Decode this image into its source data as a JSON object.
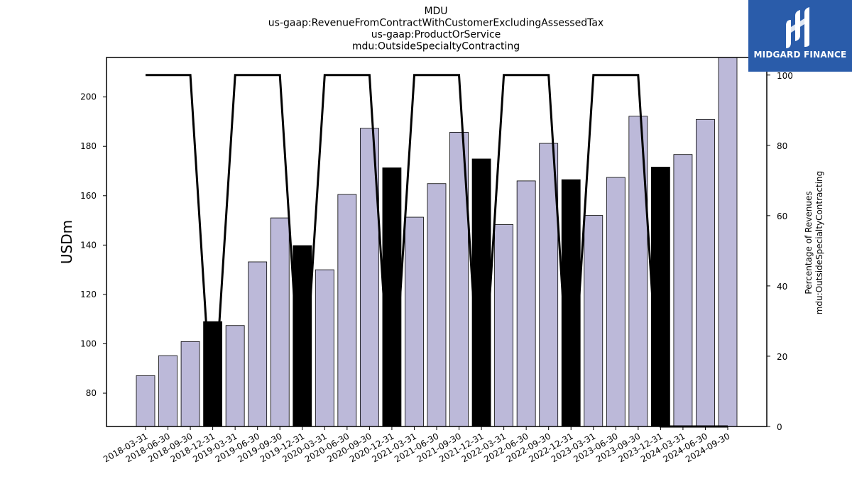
{
  "header": {
    "title_lines": [
      "MDU",
      "us-gaap:RevenueFromContractWithCustomerExcludingAssessedTax",
      "us-gaap:ProductOrService",
      "mdu:OutsideSpecialtyContracting"
    ]
  },
  "logo": {
    "text": "MIDGARD FINANCE",
    "icon": "midgard-logo-icon",
    "background": "#2a5caa"
  },
  "chart_data": {
    "type": "bar",
    "categories": [
      "2018-03-31",
      "2018-06-30",
      "2018-09-30",
      "2018-12-31",
      "2019-03-31",
      "2019-06-30",
      "2019-09-30",
      "2019-12-31",
      "2020-03-31",
      "2020-06-30",
      "2020-09-30",
      "2020-12-31",
      "2021-03-31",
      "2021-06-30",
      "2021-09-30",
      "2021-12-31",
      "2022-03-31",
      "2022-06-30",
      "2022-09-30",
      "2022-12-31",
      "2023-03-31",
      "2023-06-30",
      "2023-09-30",
      "2023-12-31",
      "2024-03-31",
      "2024-06-30",
      "2024-09-30"
    ],
    "series": [
      {
        "axis": "left",
        "type": "bar",
        "values": [
          87.1,
          95.2,
          100.9,
          109.0,
          107.4,
          133.2,
          151.0,
          139.8,
          130.0,
          160.5,
          187.3,
          171.3,
          151.3,
          164.9,
          185.7,
          174.9,
          148.3,
          166.0,
          181.2,
          166.5,
          152.0,
          167.4,
          192.2,
          171.6,
          176.7,
          190.9,
          217.0
        ],
        "highlight_indices": [
          3,
          7,
          11,
          15,
          19,
          23
        ],
        "color": "#bcb9d9",
        "highlight_color": "#000000"
      },
      {
        "axis": "right",
        "type": "line",
        "values": [
          100,
          100,
          100,
          0,
          100,
          100,
          100,
          0,
          100,
          100,
          100,
          0,
          100,
          100,
          100,
          0,
          100,
          100,
          100,
          0,
          100,
          100,
          100,
          0,
          0,
          0,
          0
        ],
        "color": "#000000"
      }
    ],
    "y_left": {
      "label": "USDm",
      "ylim": [
        66.5,
        216
      ],
      "ticks": [
        80,
        100,
        120,
        140,
        160,
        180,
        200
      ]
    },
    "y_right": {
      "label_lines": [
        "Percentage of Revenues",
        "mdu:OutsideSpecialtyContracting"
      ],
      "ylim": [
        0,
        105
      ],
      "ticks": [
        0,
        20,
        40,
        60,
        80,
        100
      ]
    },
    "grid": false,
    "legend": "none"
  }
}
